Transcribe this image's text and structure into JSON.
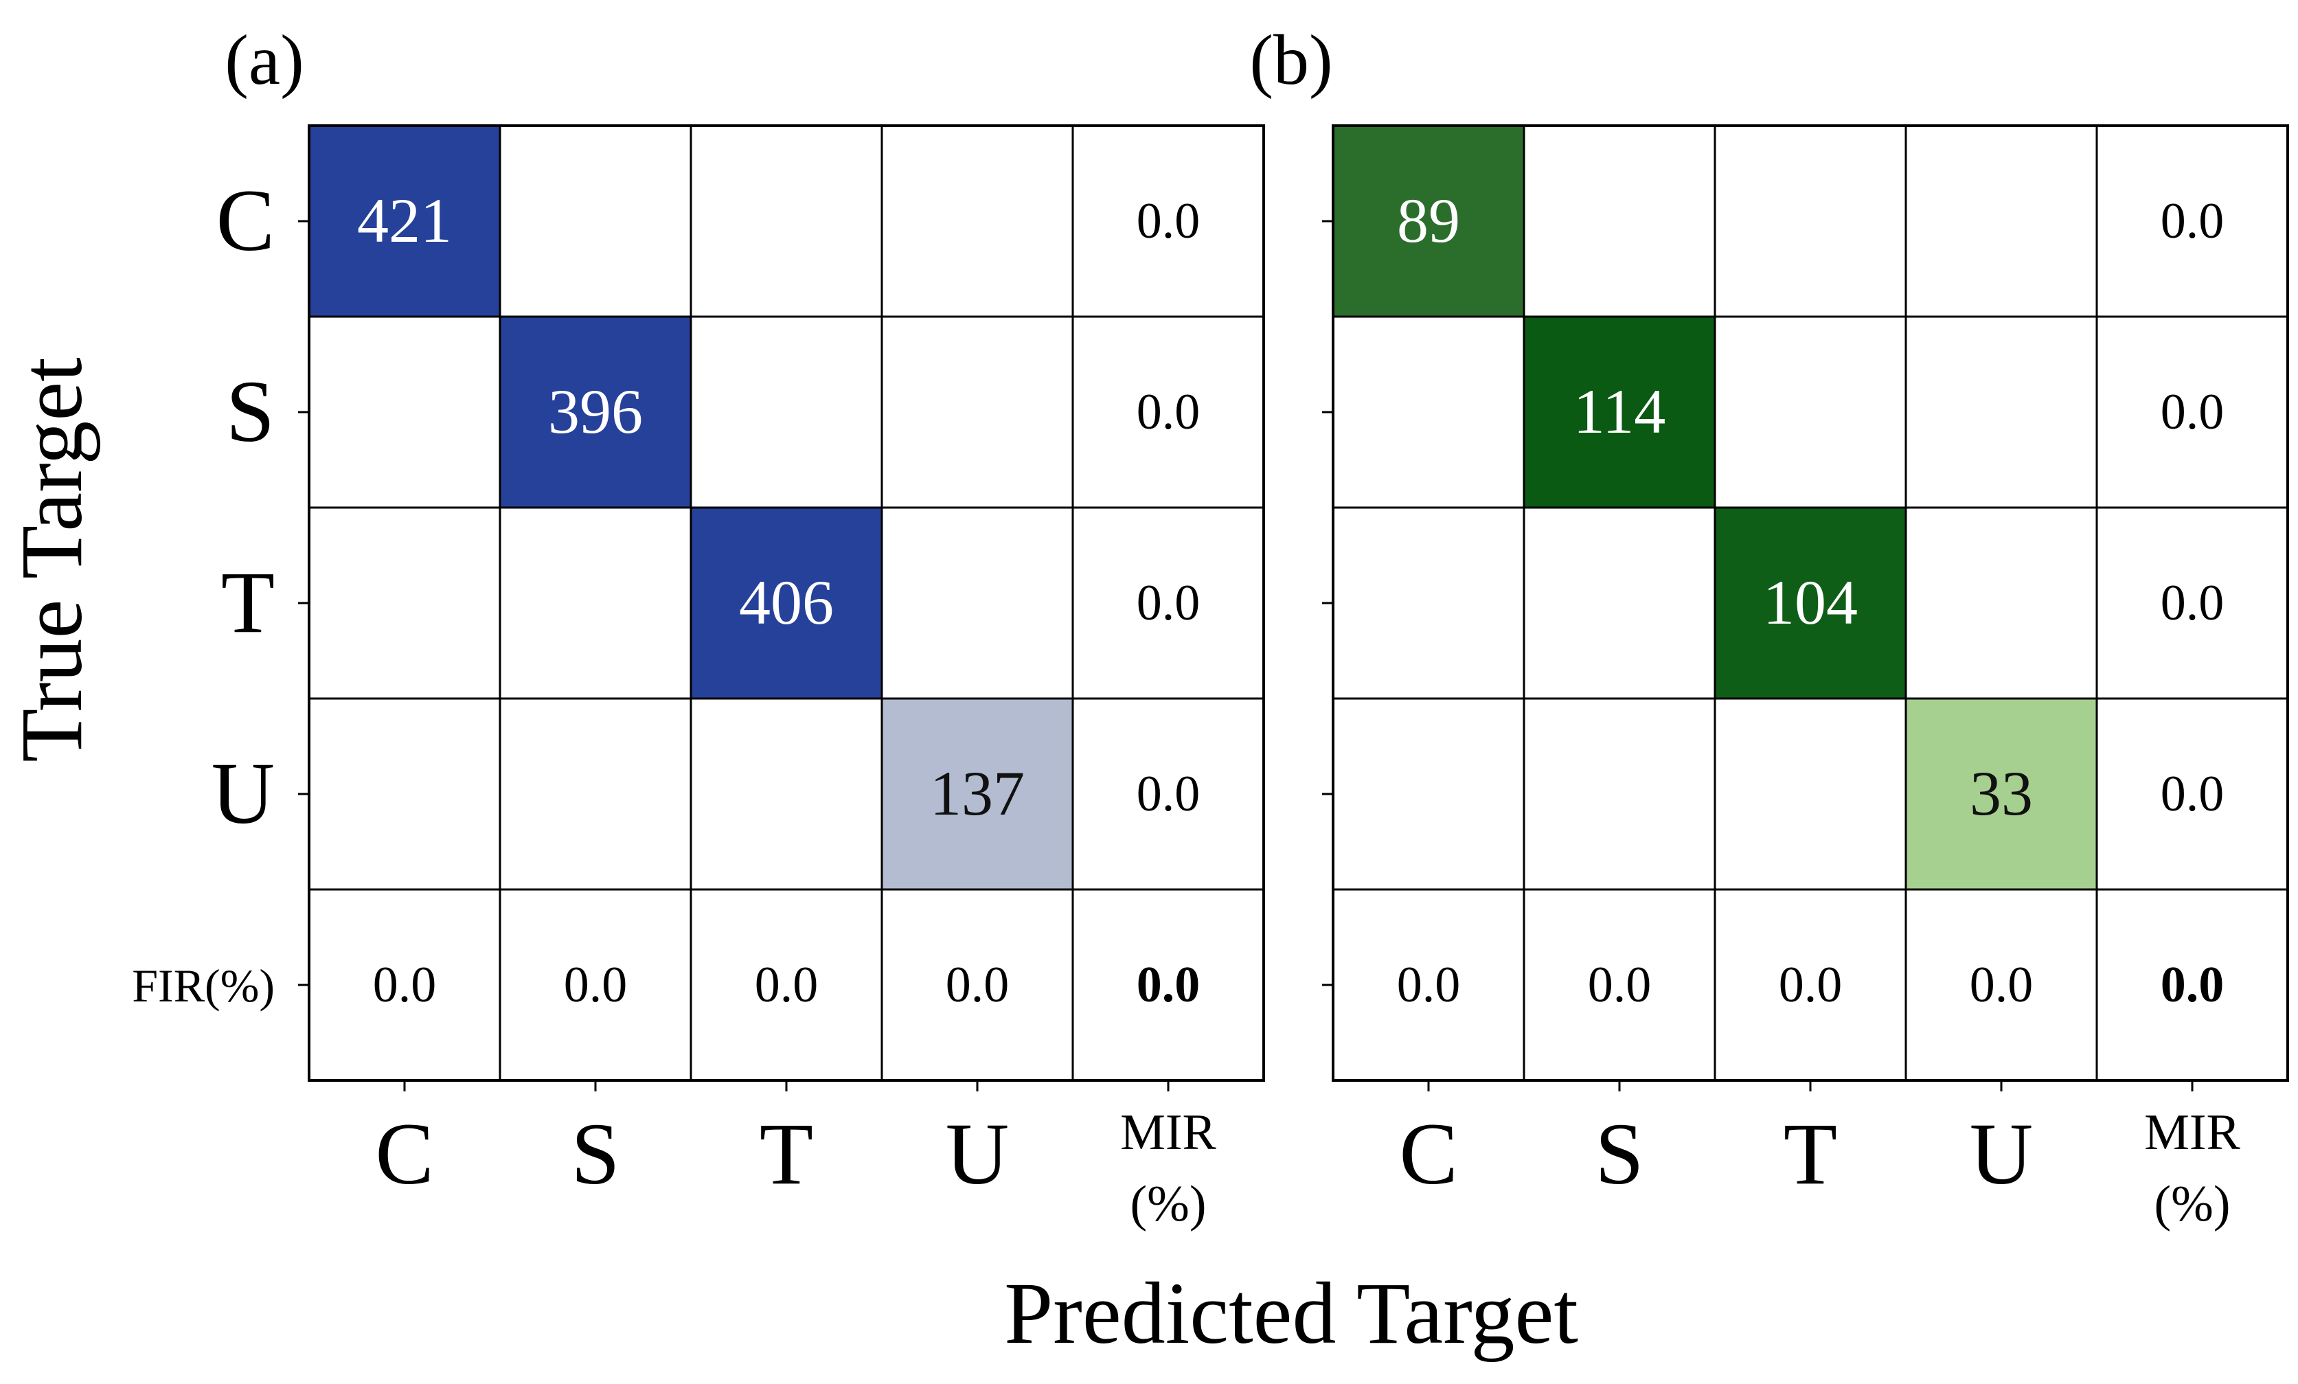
{
  "figure": {
    "ylabel": "True Target",
    "xlabel": "Predicted Target"
  },
  "chart_data": [
    {
      "type": "heatmap",
      "panel_label": "(a)",
      "row_labels": [
        "C",
        "S",
        "T",
        "U",
        "FIR(%)"
      ],
      "col_labels": [
        "C",
        "S",
        "T",
        "U"
      ],
      "extra_col_label": [
        "MIR",
        "(%)"
      ],
      "cells": [
        [
          "421",
          "",
          "",
          "",
          "0.0"
        ],
        [
          "",
          "396",
          "",
          "",
          "0.0"
        ],
        [
          "",
          "",
          "406",
          "",
          "0.0"
        ],
        [
          "",
          "",
          "",
          "137",
          "0.0"
        ],
        [
          "0.0",
          "0.0",
          "0.0",
          "0.0",
          "0.0"
        ]
      ],
      "cell_colors": [
        [
          "#26419a",
          "#ffffff",
          "#ffffff",
          "#ffffff",
          "#ffffff"
        ],
        [
          "#ffffff",
          "#26419a",
          "#ffffff",
          "#ffffff",
          "#ffffff"
        ],
        [
          "#ffffff",
          "#ffffff",
          "#26419a",
          "#ffffff",
          "#ffffff"
        ],
        [
          "#ffffff",
          "#ffffff",
          "#ffffff",
          "#b3bcd0",
          "#ffffff"
        ],
        [
          "#ffffff",
          "#ffffff",
          "#ffffff",
          "#ffffff",
          "#ffffff"
        ]
      ],
      "text_colors": [
        [
          "#ffffff",
          "#000000",
          "#000000",
          "#000000",
          "#000000"
        ],
        [
          "#000000",
          "#ffffff",
          "#000000",
          "#000000",
          "#000000"
        ],
        [
          "#000000",
          "#000000",
          "#ffffff",
          "#000000",
          "#000000"
        ],
        [
          "#000000",
          "#000000",
          "#000000",
          "#111111",
          "#000000"
        ],
        [
          "#000000",
          "#000000",
          "#000000",
          "#000000",
          "#000000"
        ]
      ],
      "bold_cells": [
        [
          4,
          4
        ]
      ]
    },
    {
      "type": "heatmap",
      "panel_label": "(b)",
      "row_labels": [
        "",
        "",
        "",
        "",
        ""
      ],
      "col_labels": [
        "C",
        "S",
        "T",
        "U"
      ],
      "extra_col_label": [
        "MIR",
        "(%)"
      ],
      "cells": [
        [
          "89",
          "",
          "",
          "",
          "0.0"
        ],
        [
          "",
          "114",
          "",
          "",
          "0.0"
        ],
        [
          "",
          "",
          "104",
          "",
          "0.0"
        ],
        [
          "",
          "",
          "",
          "33",
          "0.0"
        ],
        [
          "0.0",
          "0.0",
          "0.0",
          "0.0",
          "0.0"
        ]
      ],
      "cell_colors": [
        [
          "#2b6e2c",
          "#ffffff",
          "#ffffff",
          "#ffffff",
          "#ffffff"
        ],
        [
          "#ffffff",
          "#0b5a14",
          "#ffffff",
          "#ffffff",
          "#ffffff"
        ],
        [
          "#ffffff",
          "#ffffff",
          "#0f5e18",
          "#ffffff",
          "#ffffff"
        ],
        [
          "#ffffff",
          "#ffffff",
          "#ffffff",
          "#a6d08f",
          "#ffffff"
        ],
        [
          "#ffffff",
          "#ffffff",
          "#ffffff",
          "#ffffff",
          "#ffffff"
        ]
      ],
      "text_colors": [
        [
          "#ffffff",
          "#000000",
          "#000000",
          "#000000",
          "#000000"
        ],
        [
          "#000000",
          "#ffffff",
          "#000000",
          "#000000",
          "#000000"
        ],
        [
          "#000000",
          "#000000",
          "#ffffff",
          "#000000",
          "#000000"
        ],
        [
          "#000000",
          "#000000",
          "#000000",
          "#111111",
          "#000000"
        ],
        [
          "#000000",
          "#000000",
          "#000000",
          "#000000",
          "#000000"
        ]
      ],
      "bold_cells": [
        [
          4,
          4
        ]
      ]
    }
  ]
}
